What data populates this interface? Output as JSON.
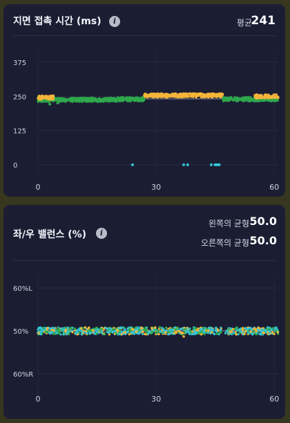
{
  "colors": {
    "background": "#37361f",
    "card": "#1b1e33",
    "yellow": "#f5b53a",
    "green": "#2fa84c",
    "cyan": "#35c2d3",
    "baseline": "#8c909c"
  },
  "contact_time": {
    "title": "지면 접촉 시간 (ms)",
    "info_icon": "info-icon",
    "avg_label": "평균",
    "avg_value": "241"
  },
  "balance": {
    "title": "좌/우 밸런스 (%)",
    "info_icon": "info-icon",
    "left_label": "왼쪽의 균형",
    "left_value": "50.0",
    "right_label": "오른쪽의 균형",
    "right_value": "50.0"
  },
  "chart_data": [
    {
      "type": "scatter",
      "title": "지면 접촉 시간 (ms)",
      "xlim": [
        0,
        61
      ],
      "ylim": [
        0,
        375
      ],
      "x_ticks": [
        "0",
        "30",
        "60"
      ],
      "y_ticks": [
        "375",
        "250",
        "125",
        "0"
      ],
      "grid": true,
      "series": [
        {
          "color": "#2fa84c",
          "segments": [
            {
              "x_range": [
                0,
                14
              ],
              "y": 238
            },
            {
              "x_range": [
                14,
                20
              ],
              "y": 238
            },
            {
              "x_range": [
                20,
                27
              ],
              "y": 240
            },
            {
              "x_range": [
                47,
                61
              ],
              "y": 240
            }
          ],
          "dips": [
            {
              "x": 3,
              "y": 222
            },
            {
              "x": 5,
              "y": 226
            }
          ]
        },
        {
          "color": "#f5b53a",
          "segments": [
            {
              "x_range": [
                0,
                4
              ],
              "y": 246
            },
            {
              "x_range": [
                27,
                47
              ],
              "y": 254
            },
            {
              "x_range": [
                55,
                61
              ],
              "y": 250
            }
          ]
        },
        {
          "color": "#35c2d3",
          "points": [
            {
              "x": 24,
              "y": 0
            },
            {
              "x": 37,
              "y": 0
            },
            {
              "x": 38,
              "y": 0
            },
            {
              "x": 44,
              "y": 0
            },
            {
              "x": 45,
              "y": 0
            },
            {
              "x": 46,
              "y": 0
            }
          ]
        }
      ]
    },
    {
      "type": "scatter",
      "title": "좌/우 밸런스 (%)",
      "xlim": [
        0,
        61
      ],
      "ylim": [
        "60%R",
        "60%L"
      ],
      "x_ticks": [
        "0",
        "30",
        "60"
      ],
      "y_ticks": [
        "60%L",
        "50%",
        "60%R"
      ],
      "grid": true,
      "series": [
        {
          "color": "#35c2d3",
          "center": 50,
          "x_range": [
            0,
            61
          ]
        },
        {
          "color": "#f5b53a",
          "center": 50,
          "x_range": [
            0,
            61
          ]
        },
        {
          "color": "#2fa84c",
          "center": 50,
          "x_range": [
            0,
            61
          ]
        }
      ]
    }
  ]
}
